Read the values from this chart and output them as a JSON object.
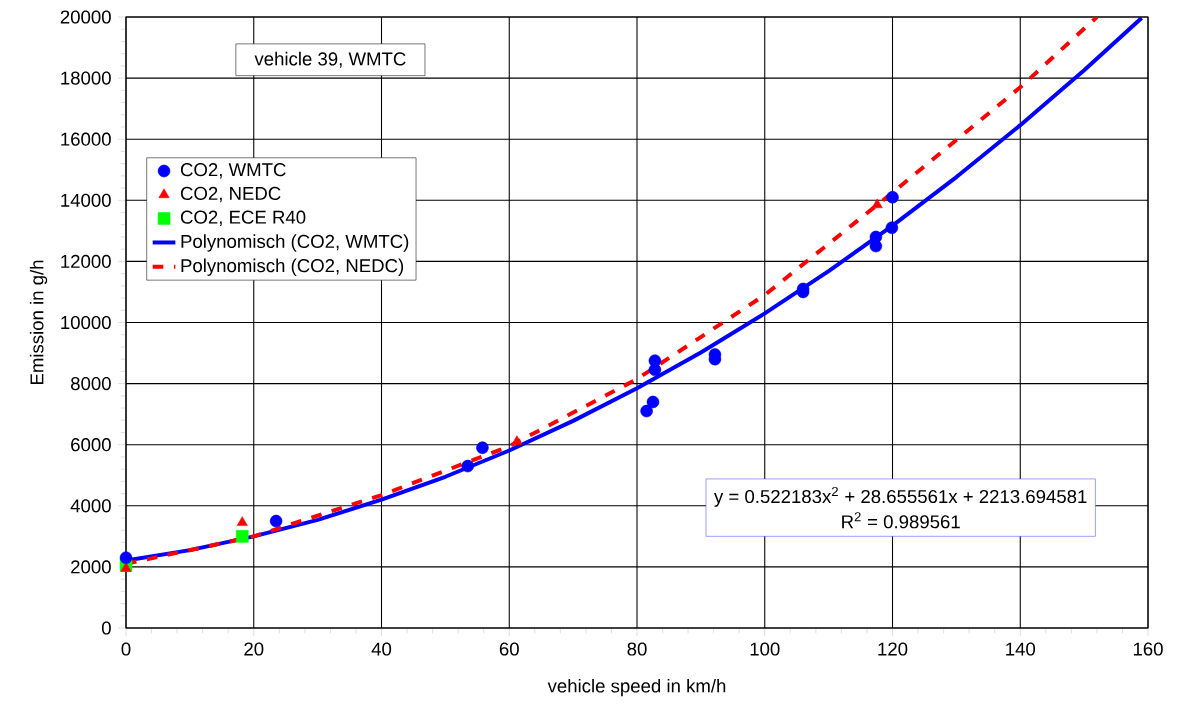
{
  "chart_data": {
    "type": "scatter",
    "xlabel": "vehicle speed in km/h",
    "ylabel": "Emission in g/h",
    "xlim": [
      0,
      160
    ],
    "ylim": [
      0,
      20000
    ],
    "xticks": [
      0,
      20,
      40,
      60,
      80,
      100,
      120,
      140,
      160
    ],
    "yticks": [
      0,
      2000,
      4000,
      6000,
      8000,
      10000,
      12000,
      14000,
      16000,
      18000,
      20000
    ],
    "grid": true,
    "legend": "top left",
    "annotations": [
      "vehicle 39, WMTC",
      "y = 0.522183x$^{2}$ + 28.655561x + 2213.694581",
      "R$^{2}$ = 0.989561"
    ],
    "series": [
      {
        "name": "CO2, WMTC",
        "marker": "circle",
        "color": "#0000ff",
        "x": [
          0,
          23.5,
          53.5,
          55.8,
          81.5,
          82.5,
          82.8,
          82.8,
          92.2,
          92.2,
          106,
          106,
          117.4,
          117.4,
          119.9,
          120
        ],
        "values": [
          2300,
          3500,
          5300,
          5900,
          7100,
          7400,
          8450,
          8750,
          8800,
          8950,
          11000,
          11100,
          12500,
          12800,
          13100,
          14100
        ]
      },
      {
        "name": "CO2, NEDC",
        "marker": "triangle",
        "color": "#ff0000",
        "x": [
          0,
          18.2,
          61.2,
          117.6
        ],
        "values": [
          1950,
          3450,
          6100,
          13850
        ]
      },
      {
        "name": "CO2, ECE R40",
        "marker": "square",
        "color": "#00ff00",
        "x": [
          0,
          18.2
        ],
        "values": [
          2050,
          3000
        ]
      },
      {
        "name": "Polynomisch (CO2, WMTC)",
        "type": "line",
        "marker": "none",
        "line_style": "solid",
        "color": "#0000ff",
        "x": [
          0,
          10,
          20,
          30,
          40,
          50,
          60,
          70,
          80,
          90,
          100,
          110,
          120,
          130,
          140,
          150,
          159
        ],
        "values": [
          2210,
          2550,
          3000,
          3540,
          4200,
          4950,
          5810,
          6780,
          7850,
          9020,
          10300,
          11680,
          13170,
          14760,
          16460,
          18260,
          19970
        ]
      },
      {
        "name": "Polynomisch (CO2, NEDC)",
        "type": "line",
        "marker": "none",
        "line_style": "dashed",
        "color": "#ff0000",
        "x": [
          0,
          20,
          40,
          60,
          80,
          100,
          120,
          140,
          152
        ],
        "values": [
          2100,
          3000,
          4350,
          5950,
          8150,
          10900,
          14250,
          17700,
          20000
        ]
      }
    ]
  }
}
